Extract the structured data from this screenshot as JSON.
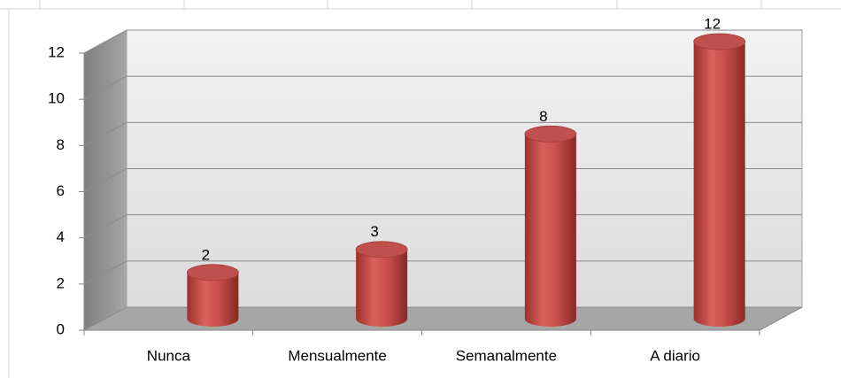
{
  "chart_data": {
    "type": "bar",
    "categories": [
      "Nunca",
      "Mensualmente",
      "Semanalmente",
      "A diario"
    ],
    "values": [
      2,
      3,
      8,
      12
    ],
    "color": "#c0504d",
    "ylim": [
      0,
      12
    ],
    "yticks": [
      0,
      2,
      4,
      6,
      8,
      10,
      12
    ],
    "grid": true
  }
}
